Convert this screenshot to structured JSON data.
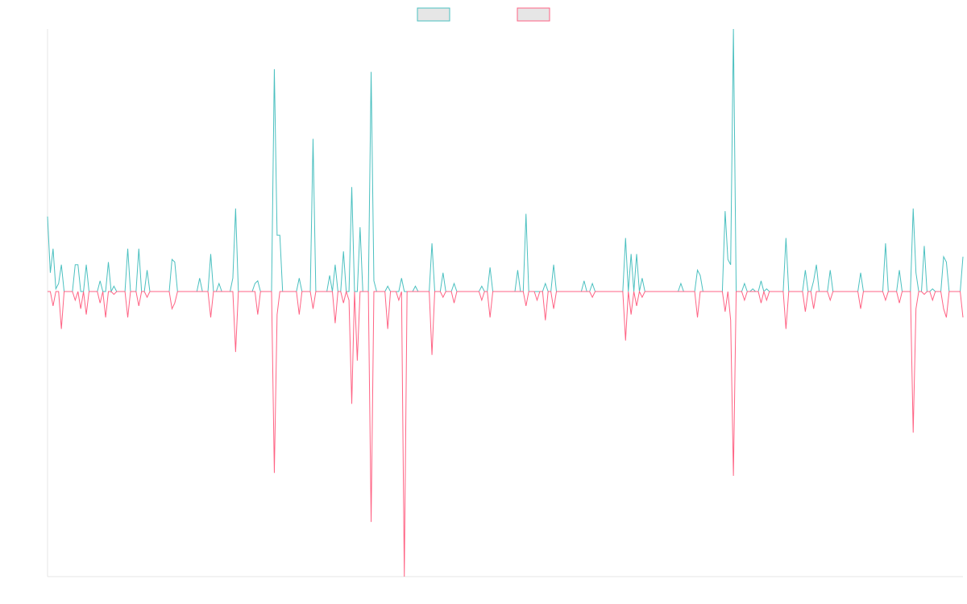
{
  "chart_data": {
    "type": "line",
    "title": "",
    "xlabel": "",
    "ylabel": "",
    "ylim": [
      -1.0,
      0.9
    ],
    "grid": false,
    "legend": {
      "placement": "top-center"
    },
    "x_count": 332,
    "baseline": 0,
    "series": [
      {
        "name": "",
        "color": "#4bc0c0",
        "fill": "#e6e6e6",
        "direction": "positive",
        "spikes": [
          [
            0,
            0.28
          ],
          [
            1,
            0.07
          ],
          [
            2,
            0.16
          ],
          [
            3,
            0.01
          ],
          [
            4,
            0.03
          ],
          [
            5,
            0.1
          ],
          [
            10,
            0.1
          ],
          [
            11,
            0.1
          ],
          [
            14,
            0.1
          ],
          [
            19,
            0.04
          ],
          [
            22,
            0.11
          ],
          [
            24,
            0.02
          ],
          [
            29,
            0.16
          ],
          [
            33,
            0.16
          ],
          [
            36,
            0.08
          ],
          [
            45,
            0.12
          ],
          [
            46,
            0.11
          ],
          [
            55,
            0.05
          ],
          [
            59,
            0.14
          ],
          [
            62,
            0.03
          ],
          [
            67,
            0.05
          ],
          [
            68,
            0.31
          ],
          [
            75,
            0.03
          ],
          [
            76,
            0.04
          ],
          [
            82,
            0.83
          ],
          [
            83,
            0.21
          ],
          [
            84,
            0.21
          ],
          [
            91,
            0.05
          ],
          [
            96,
            0.57
          ],
          [
            102,
            0.06
          ],
          [
            104,
            0.1
          ],
          [
            107,
            0.15
          ],
          [
            110,
            0.39
          ],
          [
            113,
            0.24
          ],
          [
            117,
            0.82
          ],
          [
            118,
            0.04
          ],
          [
            123,
            0.02
          ],
          [
            128,
            0.05
          ],
          [
            133,
            0.02
          ],
          [
            139,
            0.18
          ],
          [
            143,
            0.07
          ],
          [
            147,
            0.03
          ],
          [
            157,
            0.02
          ],
          [
            160,
            0.09
          ],
          [
            170,
            0.08
          ],
          [
            173,
            0.29
          ],
          [
            180,
            0.03
          ],
          [
            183,
            0.1
          ],
          [
            197,
            0.03
          ],
          [
            194,
            0.04
          ],
          [
            209,
            0.2
          ],
          [
            211,
            0.14
          ],
          [
            213,
            0.14
          ],
          [
            215,
            0.05
          ],
          [
            229,
            0.03
          ],
          [
            235,
            0.08
          ],
          [
            236,
            0.06
          ],
          [
            258,
            0.04
          ],
          [
            245,
            0.3
          ],
          [
            246,
            0.12
          ],
          [
            247,
            0.1
          ],
          [
            248,
            0.98
          ],
          [
            252,
            0.03
          ],
          [
            260,
            0.01
          ],
          [
            255,
            0.01
          ],
          [
            267,
            0.2
          ],
          [
            274,
            0.08
          ],
          [
            277,
            0.04
          ],
          [
            278,
            0.1
          ],
          [
            283,
            0.08
          ],
          [
            294,
            0.07
          ],
          [
            303,
            0.18
          ],
          [
            308,
            0.08
          ],
          [
            313,
            0.31
          ],
          [
            314,
            0.07
          ],
          [
            317,
            0.17
          ],
          [
            320,
            0.01
          ],
          [
            324,
            0.13
          ],
          [
            325,
            0.11
          ],
          [
            331,
            0.13
          ],
          [
            336,
            0.08
          ]
        ]
      },
      {
        "name": "",
        "color": "#ff6384",
        "fill": "#e6e6e6",
        "direction": "negative",
        "spikes": [
          [
            2,
            -0.05
          ],
          [
            5,
            -0.13
          ],
          [
            10,
            -0.03
          ],
          [
            12,
            -0.06
          ],
          [
            14,
            -0.08
          ],
          [
            19,
            -0.04
          ],
          [
            21,
            -0.09
          ],
          [
            24,
            -0.01
          ],
          [
            29,
            -0.09
          ],
          [
            33,
            -0.05
          ],
          [
            36,
            -0.02
          ],
          [
            45,
            -0.06
          ],
          [
            46,
            -0.04
          ],
          [
            59,
            -0.09
          ],
          [
            68,
            -0.21
          ],
          [
            76,
            -0.08
          ],
          [
            82,
            -0.63
          ],
          [
            83,
            -0.08
          ],
          [
            91,
            -0.08
          ],
          [
            96,
            -0.06
          ],
          [
            104,
            -0.11
          ],
          [
            107,
            -0.04
          ],
          [
            109,
            -0.03
          ],
          [
            110,
            -0.39
          ],
          [
            112,
            -0.24
          ],
          [
            117,
            -0.8
          ],
          [
            123,
            -0.13
          ],
          [
            127,
            -0.03
          ],
          [
            129,
            -0.99
          ],
          [
            139,
            -0.22
          ],
          [
            143,
            -0.02
          ],
          [
            147,
            -0.04
          ],
          [
            157,
            -0.03
          ],
          [
            160,
            -0.09
          ],
          [
            173,
            -0.05
          ],
          [
            177,
            -0.03
          ],
          [
            180,
            -0.1
          ],
          [
            183,
            -0.06
          ],
          [
            197,
            -0.02
          ],
          [
            209,
            -0.17
          ],
          [
            211,
            -0.08
          ],
          [
            213,
            -0.05
          ],
          [
            215,
            -0.02
          ],
          [
            235,
            -0.09
          ],
          [
            245,
            -0.07
          ],
          [
            247,
            -0.1
          ],
          [
            248,
            -0.64
          ],
          [
            252,
            -0.03
          ],
          [
            258,
            -0.04
          ],
          [
            260,
            -0.03
          ],
          [
            267,
            -0.13
          ],
          [
            274,
            -0.07
          ],
          [
            277,
            -0.06
          ],
          [
            283,
            -0.03
          ],
          [
            294,
            -0.06
          ],
          [
            303,
            -0.03
          ],
          [
            308,
            -0.04
          ],
          [
            313,
            -0.49
          ],
          [
            314,
            -0.06
          ],
          [
            317,
            -0.01
          ],
          [
            320,
            -0.03
          ],
          [
            324,
            -0.06
          ],
          [
            325,
            -0.09
          ],
          [
            331,
            -0.09
          ],
          [
            336,
            -0.05
          ]
        ]
      }
    ]
  }
}
